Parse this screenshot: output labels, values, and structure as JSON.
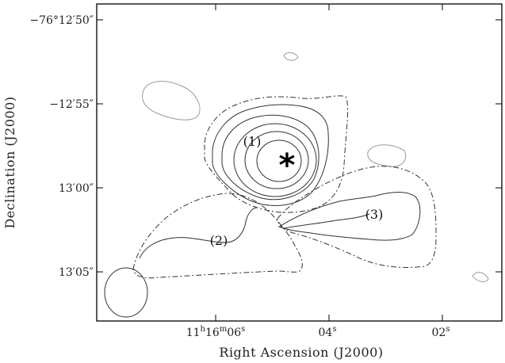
{
  "chart_data": {
    "type": "contour",
    "title": "",
    "xlabel": "Right Ascension (J2000)",
    "ylabel": "Declination (J2000)",
    "x_ticks": [
      {
        "label_main": "11",
        "sup1": "h",
        "mid1": "16",
        "sup2": "m",
        "mid2": "06",
        "sup3": "s"
      },
      {
        "label_main": "04",
        "sup3": "s"
      },
      {
        "label_main": "02",
        "sup3": "s"
      }
    ],
    "y_ticks": [
      {
        "label": "−76°12′50″"
      },
      {
        "label": "−12′55″"
      },
      {
        "label": "13′00″"
      },
      {
        "label": "13′05″"
      }
    ],
    "regions": [
      {
        "label": "(1)"
      },
      {
        "label": "(2)"
      },
      {
        "label": "(3)"
      }
    ],
    "source_marker": "*",
    "colors": {
      "contour": "#333333",
      "frame": "#000000",
      "faint_contour": "#999999"
    }
  }
}
